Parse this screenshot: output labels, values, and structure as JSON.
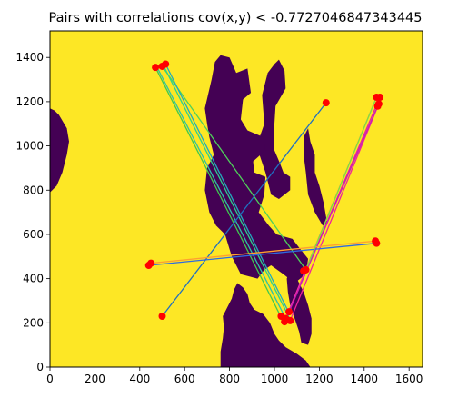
{
  "chart_data": {
    "type": "scatter",
    "title": "Pairs with correlations cov(x,y) < -0.7727046847343445",
    "xlabel": "",
    "ylabel": "",
    "xlim": [
      0,
      1660
    ],
    "ylim": [
      0,
      1520
    ],
    "x_ticks": [
      0,
      200,
      400,
      600,
      800,
      1000,
      1200,
      1400,
      1600
    ],
    "y_ticks": [
      0,
      200,
      400,
      600,
      800,
      1000,
      1200,
      1400
    ],
    "grid": false,
    "colors": {
      "background": "#fde725",
      "region": "#440154",
      "points": "#ff0000"
    },
    "regions": [
      {
        "label": "",
        "polygon": [
          [
            945,
            1230
          ],
          [
            970,
            1330
          ],
          [
            1000,
            1370
          ],
          [
            1020,
            1390
          ],
          [
            1045,
            1340
          ],
          [
            1050,
            1260
          ],
          [
            1005,
            1180
          ],
          [
            1000,
            1100
          ],
          [
            1000,
            980
          ],
          [
            1025,
            920
          ],
          [
            1040,
            880
          ],
          [
            1070,
            860
          ],
          [
            1070,
            800
          ],
          [
            1020,
            760
          ],
          [
            985,
            780
          ],
          [
            960,
            880
          ],
          [
            920,
            1000
          ],
          [
            955,
            1100
          ]
        ]
      },
      {
        "label": "",
        "polygon": [
          [
            690,
            1170
          ],
          [
            720,
            1300
          ],
          [
            735,
            1380
          ],
          [
            760,
            1410
          ],
          [
            800,
            1400
          ],
          [
            830,
            1330
          ],
          [
            880,
            1350
          ],
          [
            895,
            1240
          ],
          [
            860,
            1210
          ],
          [
            850,
            1120
          ],
          [
            880,
            1070
          ],
          [
            950,
            1040
          ],
          [
            960,
            980
          ],
          [
            905,
            930
          ],
          [
            910,
            880
          ],
          [
            960,
            860
          ],
          [
            955,
            780
          ],
          [
            930,
            700
          ],
          [
            975,
            640
          ],
          [
            1010,
            600
          ],
          [
            1080,
            580
          ],
          [
            1110,
            540
          ],
          [
            1150,
            490
          ],
          [
            1140,
            420
          ],
          [
            1090,
            380
          ],
          [
            1040,
            420
          ],
          [
            985,
            460
          ],
          [
            955,
            440
          ],
          [
            925,
            400
          ],
          [
            850,
            420
          ],
          [
            810,
            500
          ],
          [
            780,
            600
          ],
          [
            740,
            640
          ],
          [
            710,
            700
          ],
          [
            690,
            800
          ],
          [
            700,
            900
          ],
          [
            730,
            960
          ],
          [
            710,
            1040
          ],
          [
            700,
            1100
          ]
        ]
      },
      {
        "label": "",
        "polygon": [
          [
            0,
            1170
          ],
          [
            20,
            1160
          ],
          [
            40,
            1140
          ],
          [
            75,
            1080
          ],
          [
            85,
            1020
          ],
          [
            75,
            960
          ],
          [
            55,
            880
          ],
          [
            30,
            820
          ],
          [
            0,
            790
          ]
        ]
      },
      {
        "label": "",
        "polygon": [
          [
            1150,
            1080
          ],
          [
            1160,
            1020
          ],
          [
            1180,
            960
          ],
          [
            1180,
            880
          ],
          [
            1200,
            820
          ],
          [
            1220,
            740
          ],
          [
            1235,
            650
          ],
          [
            1215,
            640
          ],
          [
            1180,
            700
          ],
          [
            1150,
            780
          ],
          [
            1140,
            880
          ],
          [
            1130,
            960
          ],
          [
            1130,
            1040
          ]
        ]
      },
      {
        "label": "",
        "polygon": [
          [
            835,
            380
          ],
          [
            860,
            360
          ],
          [
            880,
            330
          ],
          [
            890,
            290
          ],
          [
            910,
            260
          ],
          [
            950,
            240
          ],
          [
            980,
            200
          ],
          [
            1000,
            150
          ],
          [
            1020,
            120
          ],
          [
            1050,
            90
          ],
          [
            1100,
            60
          ],
          [
            1140,
            30
          ],
          [
            1160,
            0
          ],
          [
            760,
            0
          ],
          [
            760,
            70
          ],
          [
            770,
            130
          ],
          [
            775,
            180
          ],
          [
            770,
            230
          ],
          [
            790,
            270
          ],
          [
            810,
            310
          ],
          [
            820,
            350
          ]
        ]
      },
      {
        "label": "",
        "polygon": [
          [
            1070,
            440
          ],
          [
            1100,
            400
          ],
          [
            1130,
            340
          ],
          [
            1150,
            280
          ],
          [
            1165,
            220
          ],
          [
            1165,
            150
          ],
          [
            1150,
            100
          ],
          [
            1120,
            110
          ],
          [
            1110,
            160
          ],
          [
            1090,
            220
          ],
          [
            1070,
            280
          ],
          [
            1060,
            340
          ],
          [
            1055,
            400
          ]
        ]
      }
    ],
    "points": [
      {
        "x": 470,
        "y": 1355
      },
      {
        "x": 500,
        "y": 1360
      },
      {
        "x": 515,
        "y": 1370
      },
      {
        "x": 1230,
        "y": 1195
      },
      {
        "x": 1455,
        "y": 1220
      },
      {
        "x": 1470,
        "y": 1220
      },
      {
        "x": 1465,
        "y": 1190
      },
      {
        "x": 1460,
        "y": 1180
      },
      {
        "x": 1450,
        "y": 570
      },
      {
        "x": 1455,
        "y": 560
      },
      {
        "x": 450,
        "y": 470
      },
      {
        "x": 440,
        "y": 460
      },
      {
        "x": 1140,
        "y": 440
      },
      {
        "x": 1130,
        "y": 435
      },
      {
        "x": 500,
        "y": 230
      },
      {
        "x": 1030,
        "y": 230
      },
      {
        "x": 1050,
        "y": 220
      },
      {
        "x": 1065,
        "y": 250
      },
      {
        "x": 1070,
        "y": 210
      },
      {
        "x": 1045,
        "y": 205
      }
    ],
    "pairs": [
      {
        "x1": 470,
        "y1": 1355,
        "x2": 1030,
        "y2": 225,
        "color": "#3fc94f"
      },
      {
        "x1": 480,
        "y1": 1350,
        "x2": 1050,
        "y2": 220,
        "color": "#2dc1a8"
      },
      {
        "x1": 500,
        "y1": 1360,
        "x2": 1140,
        "y2": 440,
        "color": "#4fd05a"
      },
      {
        "x1": 515,
        "y1": 1370,
        "x2": 1065,
        "y2": 245,
        "color": "#21aabd"
      },
      {
        "x1": 505,
        "y1": 1365,
        "x2": 1070,
        "y2": 215,
        "color": "#2bd18c"
      },
      {
        "x1": 1230,
        "y1": 1195,
        "x2": 500,
        "y2": 230,
        "color": "#1f6fc0"
      },
      {
        "x1": 1455,
        "y1": 1220,
        "x2": 1050,
        "y2": 220,
        "color": "#ff33a3"
      },
      {
        "x1": 1470,
        "y1": 1220,
        "x2": 1065,
        "y2": 250,
        "color": "#e8229b"
      },
      {
        "x1": 1465,
        "y1": 1190,
        "x2": 1070,
        "y2": 210,
        "color": "#f0229c"
      },
      {
        "x1": 1460,
        "y1": 1180,
        "x2": 1045,
        "y2": 205,
        "color": "#c91fb7"
      },
      {
        "x1": 1450,
        "y1": 570,
        "x2": 450,
        "y2": 470,
        "color": "#ff9f30"
      },
      {
        "x1": 1455,
        "y1": 560,
        "x2": 440,
        "y2": 460,
        "color": "#2f6ae0"
      },
      {
        "x1": 1140,
        "y1": 440,
        "x2": 1455,
        "y2": 1220,
        "color": "#7ae83a"
      }
    ]
  }
}
